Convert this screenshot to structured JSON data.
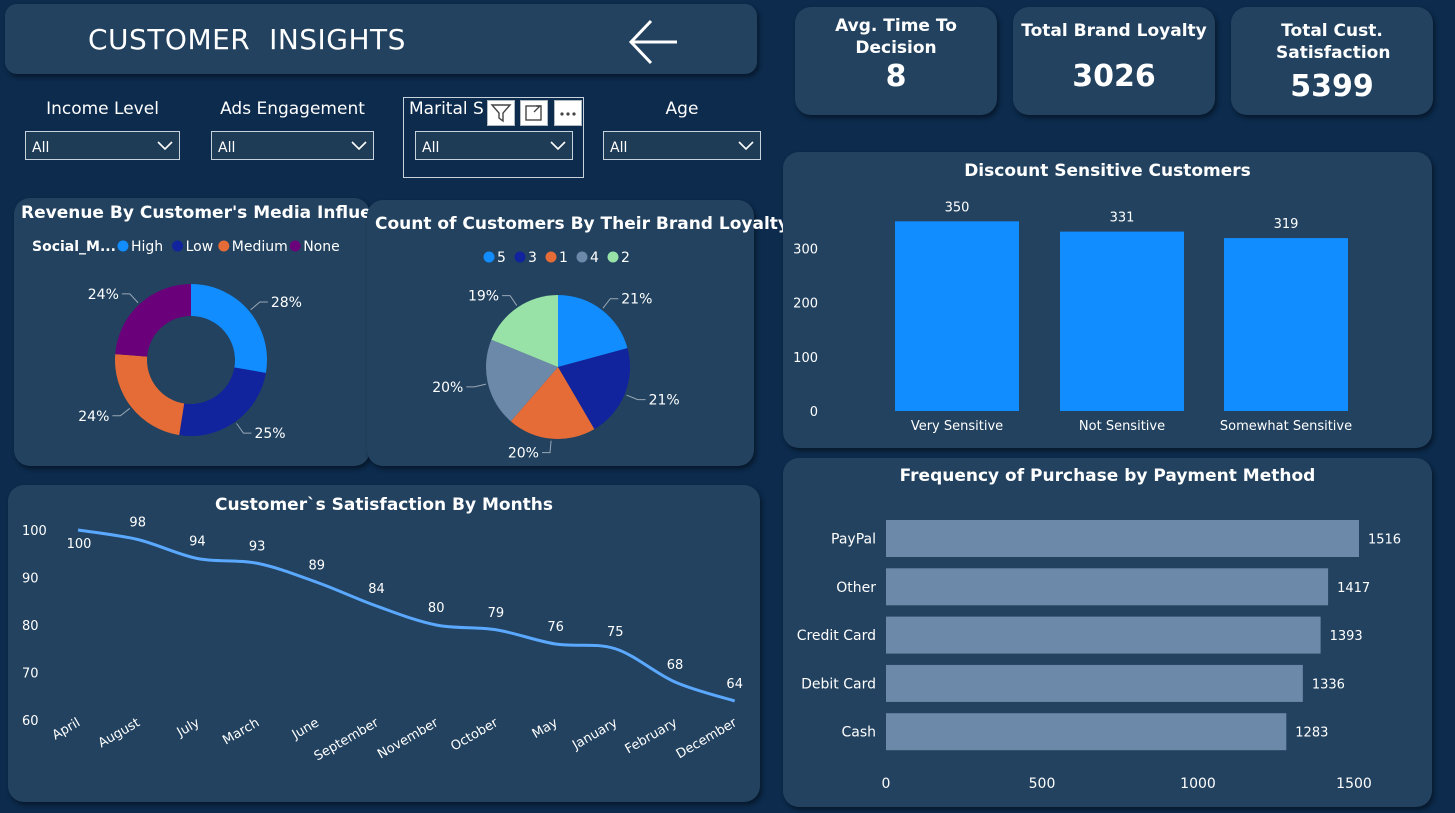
{
  "header": {
    "title": "CUSTOMER  INSIGHTS"
  },
  "kpis": [
    {
      "label": "Avg. Time To Decision",
      "value": "8"
    },
    {
      "label": "Total Brand Loyalty",
      "value": "3026"
    },
    {
      "label": "Total Cust. Satisfaction",
      "value": "5399"
    }
  ],
  "slicers": [
    {
      "label": "Income Level",
      "value": "All"
    },
    {
      "label": "Ads Engagement",
      "value": "All"
    },
    {
      "label": "Marital S",
      "value": "All"
    },
    {
      "label": "Age",
      "value": "All"
    }
  ],
  "colors": {
    "background": "#0c2b4d",
    "card": "#22425f",
    "bar_blue": "#118dff",
    "bar_slate": "#6d89a9",
    "line": "#5ba8ff"
  },
  "chart_data": [
    {
      "type": "pie",
      "variant": "donut",
      "title": "Revenue By Customer's Media Influence",
      "legend_title": "Social_M...",
      "categories": [
        "High",
        "Low",
        "Medium",
        "None"
      ],
      "values": [
        28,
        25,
        24,
        24
      ],
      "labels": [
        "28%",
        "25%",
        "24%",
        "24%"
      ],
      "colors": [
        "#118dff",
        "#12239e",
        "#e66c37",
        "#6b007b"
      ]
    },
    {
      "type": "pie",
      "title": "Count of Customers By Their Brand Loyalty",
      "categories": [
        "5",
        "3",
        "1",
        "4",
        "2"
      ],
      "values": [
        21,
        21,
        20,
        20,
        19
      ],
      "labels": [
        "21%",
        "21%",
        "20%",
        "20%",
        "19%"
      ],
      "colors": [
        "#118dff",
        "#12239e",
        "#e66c37",
        "#6d89a9",
        "#98e2a8"
      ]
    },
    {
      "type": "bar",
      "title": "Discount Sensitive Customers",
      "categories": [
        "Very Sensitive",
        "Not Sensitive",
        "Somewhat Sensitive"
      ],
      "values": [
        350,
        331,
        319
      ],
      "yticks": [
        "0",
        "100",
        "200",
        "300"
      ],
      "ylim": [
        0,
        380
      ]
    },
    {
      "type": "line",
      "title": "Customer`s Satisfaction By Months",
      "categories": [
        "April",
        "August",
        "July",
        "March",
        "June",
        "September",
        "November",
        "October",
        "May",
        "January",
        "February",
        "December"
      ],
      "values": [
        100,
        98,
        94,
        93,
        89,
        84,
        80,
        79,
        76,
        75,
        68,
        64
      ],
      "yticks": [
        "60",
        "70",
        "80",
        "90",
        "100"
      ],
      "ylim": [
        60,
        100
      ]
    },
    {
      "type": "bar",
      "orientation": "horizontal",
      "title": "Frequency of Purchase by Payment Method",
      "categories": [
        "PayPal",
        "Other",
        "Credit Card",
        "Debit Card",
        "Cash"
      ],
      "values": [
        1516,
        1417,
        1393,
        1336,
        1283
      ],
      "xticks": [
        "0",
        "500",
        "1000",
        "1500"
      ],
      "xlim": [
        0,
        1500
      ]
    }
  ]
}
